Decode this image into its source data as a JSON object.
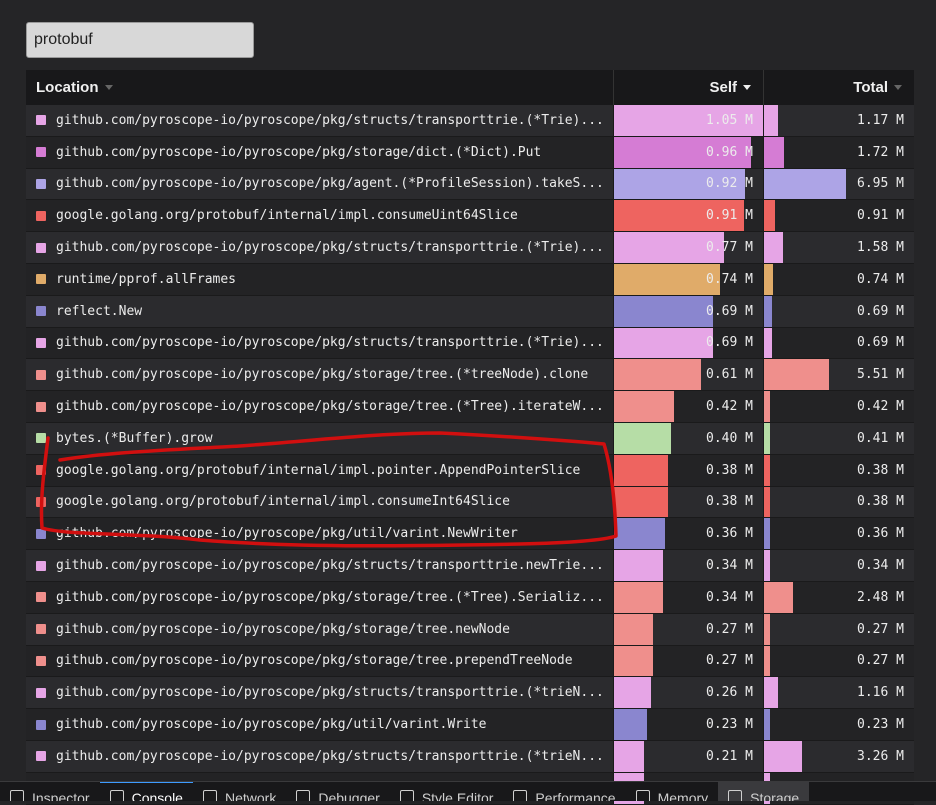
{
  "search": {
    "value": "protobuf"
  },
  "table": {
    "headers": {
      "location": "Location",
      "self": "Self",
      "total": "Total"
    },
    "rows": [
      {
        "name": "github.com/pyroscope-io/pyroscope/pkg/structs/transporttrie.(*Trie)...",
        "color": "#e6a5e6",
        "self": "1.05 M",
        "total": "1.17 M",
        "self_value": 1.05,
        "total_value": 1.17
      },
      {
        "name": "github.com/pyroscope-io/pyroscope/pkg/storage/dict.(*Dict).Put",
        "color": "#d57cd4",
        "self": "0.96 M",
        "total": "1.72 M",
        "self_value": 0.96,
        "total_value": 1.72
      },
      {
        "name": "github.com/pyroscope-io/pyroscope/pkg/agent.(*ProfileSession).takeS...",
        "color": "#ada4e6",
        "self": "0.92 M",
        "total": "6.95 M",
        "self_value": 0.92,
        "total_value": 6.95
      },
      {
        "name": "google.golang.org/protobuf/internal/impl.consumeUint64Slice",
        "color": "#ee6460",
        "self": "0.91 M",
        "total": "0.91 M",
        "self_value": 0.91,
        "total_value": 0.91
      },
      {
        "name": "github.com/pyroscope-io/pyroscope/pkg/structs/transporttrie.(*Trie)...",
        "color": "#e6a5e6",
        "self": "0.77 M",
        "total": "1.58 M",
        "self_value": 0.77,
        "total_value": 1.58
      },
      {
        "name": "runtime/pprof.allFrames",
        "color": "#e0ab69",
        "self": "0.74 M",
        "total": "0.74 M",
        "self_value": 0.74,
        "total_value": 0.74
      },
      {
        "name": "reflect.New",
        "color": "#8a86cf",
        "self": "0.69 M",
        "total": "0.69 M",
        "self_value": 0.69,
        "total_value": 0.69
      },
      {
        "name": "github.com/pyroscope-io/pyroscope/pkg/structs/transporttrie.(*Trie)...",
        "color": "#e6a5e6",
        "self": "0.69 M",
        "total": "0.69 M",
        "self_value": 0.69,
        "total_value": 0.69
      },
      {
        "name": "github.com/pyroscope-io/pyroscope/pkg/storage/tree.(*treeNode).clone",
        "color": "#ef8f8c",
        "self": "0.61 M",
        "total": "5.51 M",
        "self_value": 0.61,
        "total_value": 5.51
      },
      {
        "name": "github.com/pyroscope-io/pyroscope/pkg/storage/tree.(*Tree).iterateW...",
        "color": "#ef8f8c",
        "self": "0.42 M",
        "total": "0.42 M",
        "self_value": 0.42,
        "total_value": 0.42
      },
      {
        "name": "bytes.(*Buffer).grow",
        "color": "#b6dda6",
        "self": "0.40 M",
        "total": "0.41 M",
        "self_value": 0.4,
        "total_value": 0.41
      },
      {
        "name": "google.golang.org/protobuf/internal/impl.pointer.AppendPointerSlice",
        "color": "#ee6460",
        "self": "0.38 M",
        "total": "0.38 M",
        "self_value": 0.38,
        "total_value": 0.38
      },
      {
        "name": "google.golang.org/protobuf/internal/impl.consumeInt64Slice",
        "color": "#ee6460",
        "self": "0.38 M",
        "total": "0.38 M",
        "self_value": 0.38,
        "total_value": 0.38
      },
      {
        "name": "github.com/pyroscope-io/pyroscope/pkg/util/varint.NewWriter",
        "color": "#8a86cf",
        "self": "0.36 M",
        "total": "0.36 M",
        "self_value": 0.36,
        "total_value": 0.36
      },
      {
        "name": "github.com/pyroscope-io/pyroscope/pkg/structs/transporttrie.newTrie...",
        "color": "#e6a5e6",
        "self": "0.34 M",
        "total": "0.34 M",
        "self_value": 0.34,
        "total_value": 0.34
      },
      {
        "name": "github.com/pyroscope-io/pyroscope/pkg/storage/tree.(*Tree).Serializ...",
        "color": "#ef8f8c",
        "self": "0.34 M",
        "total": "2.48 M",
        "self_value": 0.34,
        "total_value": 2.48
      },
      {
        "name": "github.com/pyroscope-io/pyroscope/pkg/storage/tree.newNode",
        "color": "#ef8f8c",
        "self": "0.27 M",
        "total": "0.27 M",
        "self_value": 0.27,
        "total_value": 0.27
      },
      {
        "name": "github.com/pyroscope-io/pyroscope/pkg/storage/tree.prependTreeNode",
        "color": "#ef8f8c",
        "self": "0.27 M",
        "total": "0.27 M",
        "self_value": 0.27,
        "total_value": 0.27
      },
      {
        "name": "github.com/pyroscope-io/pyroscope/pkg/structs/transporttrie.(*trieN...",
        "color": "#e6a5e6",
        "self": "0.26 M",
        "total": "1.16 M",
        "self_value": 0.26,
        "total_value": 1.16
      },
      {
        "name": "github.com/pyroscope-io/pyroscope/pkg/util/varint.Write",
        "color": "#8a86cf",
        "self": "0.23 M",
        "total": "0.23 M",
        "self_value": 0.23,
        "total_value": 0.23
      },
      {
        "name": "github.com/pyroscope-io/pyroscope/pkg/structs/transporttrie.(*trieN...",
        "color": "#e6a5e6",
        "self": "0.21 M",
        "total": "3.26 M",
        "self_value": 0.21,
        "total_value": 3.26
      },
      {
        "name": "",
        "color": "#e6a5e6",
        "self": "",
        "total": "",
        "self_value": 0.21,
        "total_value": 0.21
      }
    ]
  },
  "devtools": {
    "tabs": [
      {
        "label": "Inspector",
        "icon": "inspector-icon"
      },
      {
        "label": "Console",
        "icon": "console-icon",
        "active": true
      },
      {
        "label": "Network",
        "icon": "network-icon"
      },
      {
        "label": "Debugger",
        "icon": "debugger-icon"
      },
      {
        "label": "Style Editor",
        "icon": "style-editor-icon"
      },
      {
        "label": "Performance",
        "icon": "performance-icon"
      },
      {
        "label": "Memory",
        "icon": "memory-icon"
      },
      {
        "label": "Storage",
        "icon": "storage-icon"
      }
    ]
  },
  "colors": {
    "annotation": "#d10f0f",
    "sort_active": "#f0f0f0"
  }
}
